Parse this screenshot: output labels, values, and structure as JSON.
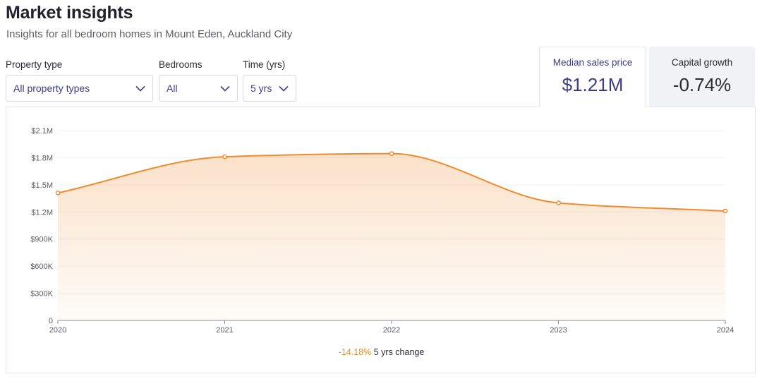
{
  "header": {
    "title": "Market insights",
    "subtitle": "Insights for all bedroom homes in Mount Eden, Auckland City"
  },
  "filters": {
    "property_type": {
      "label": "Property type",
      "value": "All property types"
    },
    "bedrooms": {
      "label": "Bedrooms",
      "value": "All"
    },
    "time": {
      "label": "Time (yrs)",
      "value": "5 yrs"
    }
  },
  "stats": {
    "median": {
      "label": "Median sales price",
      "value": "$1.21M"
    },
    "growth": {
      "label": "Capital growth",
      "value": "-0.74%"
    }
  },
  "change": {
    "percent": "-14.18%",
    "label": "5 yrs change"
  },
  "colors": {
    "line": "#ee8c2f",
    "accent": "#3d3d86"
  },
  "chart_data": {
    "type": "area",
    "x": [
      "2020",
      "2021",
      "2022",
      "2023",
      "2024"
    ],
    "values": [
      1410000,
      1810000,
      1845000,
      1300000,
      1210000
    ],
    "y_ticks": [
      "0",
      "$300K",
      "$600K",
      "$900K",
      "$1.2M",
      "$1.5M",
      "$1.8M",
      "$2.1M"
    ],
    "ylim": [
      0,
      2100000
    ],
    "grid": true
  }
}
